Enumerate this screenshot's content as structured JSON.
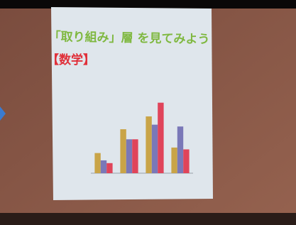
{
  "chart_data": {
    "type": "bar",
    "title": "「取り組み」層 を見てみよう",
    "subtitle": "【数学】",
    "categories": [
      null,
      null,
      null,
      null
    ],
    "series": [
      {
        "color": "#c9a447",
        "values": [
          22,
          48,
          62,
          28
        ]
      },
      {
        "color": "#7a78b8",
        "values": [
          14,
          37,
          53,
          51
        ]
      },
      {
        "color": "#e0445a",
        "values": [
          11,
          37,
          77,
          26
        ]
      }
    ],
    "ylim": [
      0,
      100
    ]
  }
}
